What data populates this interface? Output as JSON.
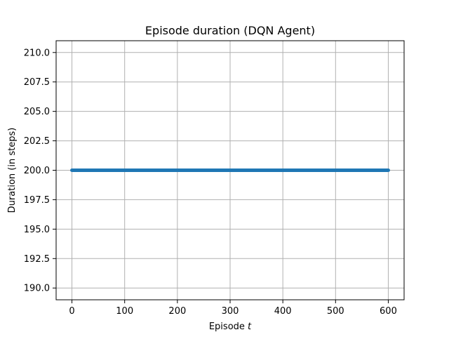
{
  "chart_data": {
    "type": "line",
    "title": "Episode duration (DQN Agent)",
    "xlabel_prefix": "Episode ",
    "xlabel_var": "t",
    "ylabel": "Duration (in steps)",
    "xlim": [
      -30,
      630
    ],
    "ylim": [
      189,
      211
    ],
    "xticks": [
      0,
      100,
      200,
      300,
      400,
      500,
      600
    ],
    "xtick_labels": [
      "0",
      "100",
      "200",
      "300",
      "400",
      "500",
      "600"
    ],
    "yticks": [
      190.0,
      192.5,
      195.0,
      197.5,
      200.0,
      202.5,
      205.0,
      207.5,
      210.0
    ],
    "ytick_labels": [
      "190.0",
      "192.5",
      "195.0",
      "197.5",
      "200.0",
      "202.5",
      "205.0",
      "207.5",
      "210.0"
    ],
    "grid": true,
    "series": [
      {
        "color": "#1f77b4",
        "x_range": [
          0,
          600
        ],
        "constant_y": 200.0,
        "marker": "point"
      }
    ]
  }
}
